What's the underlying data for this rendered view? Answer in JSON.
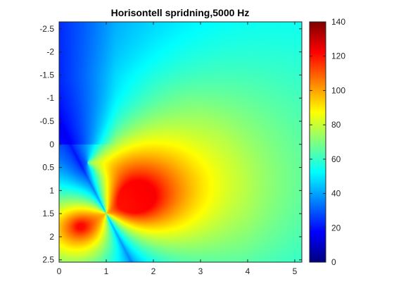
{
  "chart_data": {
    "type": "heatmap",
    "title": "Horisontell spridning,5000 Hz",
    "xlabel": "",
    "ylabel": "",
    "xlim": [
      0,
      5.15
    ],
    "ylim": [
      -2.65,
      2.55
    ],
    "y_direction": "reversed",
    "x_ticks": [
      "0",
      "1",
      "2",
      "3",
      "4",
      "5"
    ],
    "y_ticks": [
      "-2.5",
      "-2",
      "-1.5",
      "-1",
      "-0.5",
      "0",
      "0.5",
      "1",
      "1.5",
      "2",
      "2.5"
    ],
    "colormap": "jet",
    "clim": [
      0,
      140
    ],
    "colorbar_ticks": [
      "0",
      "20",
      "40",
      "60",
      "80",
      "100",
      "120",
      "140"
    ],
    "sources": [
      {
        "x": 0.45,
        "y": 1.78,
        "peak": 140
      },
      {
        "x": 1.55,
        "y": 1.22,
        "peak": 140
      }
    ],
    "null_point": {
      "x": 1.0,
      "y": 1.5
    },
    "far_field_value": 80,
    "grid": false
  }
}
